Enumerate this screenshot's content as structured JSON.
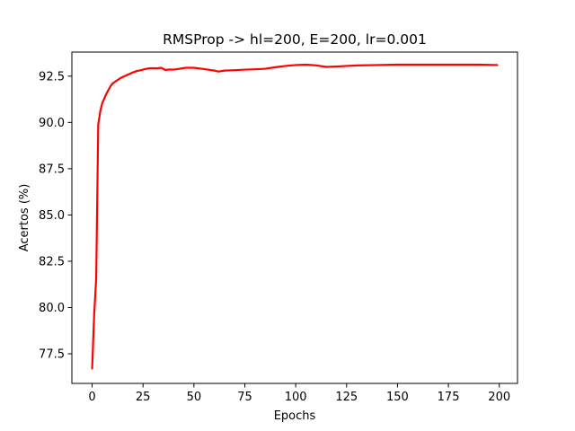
{
  "chart_data": {
    "type": "line",
    "title": "RMSProp -> hl=200, E=200, lr=0.001",
    "xlabel": "Epochs",
    "ylabel": "Acertos (%)",
    "xlim": [
      -9.95,
      208.95
    ],
    "ylim": [
      75.9,
      93.8
    ],
    "xticks": [
      0,
      25,
      50,
      75,
      100,
      125,
      150,
      175,
      200
    ],
    "yticks": [
      77.5,
      80.0,
      82.5,
      85.0,
      87.5,
      90.0,
      92.5
    ],
    "xtick_labels": [
      "0",
      "25",
      "50",
      "75",
      "100",
      "125",
      "150",
      "175",
      "200"
    ],
    "ytick_labels": [
      "77.5",
      "80.0",
      "82.5",
      "85.0",
      "87.5",
      "90.0",
      "92.5"
    ],
    "grid": false,
    "legend": "none",
    "series": [
      {
        "color": "#ff0000",
        "x": [
          0,
          1,
          2,
          3,
          4,
          5,
          6,
          7,
          8,
          9,
          10,
          12,
          14,
          16,
          18,
          20,
          22,
          24,
          26,
          28,
          30,
          32,
          34,
          36,
          38,
          40,
          42,
          44,
          46,
          48,
          50,
          55,
          60,
          62,
          65,
          70,
          75,
          80,
          85,
          90,
          95,
          100,
          105,
          110,
          115,
          120,
          125,
          130,
          140,
          150,
          160,
          170,
          180,
          190,
          199
        ],
        "values": [
          76.7,
          79.6,
          81.6,
          89.9,
          90.6,
          91.05,
          91.3,
          91.55,
          91.75,
          91.95,
          92.1,
          92.25,
          92.4,
          92.5,
          92.6,
          92.7,
          92.78,
          92.82,
          92.88,
          92.92,
          92.93,
          92.92,
          92.95,
          92.83,
          92.86,
          92.85,
          92.88,
          92.92,
          92.95,
          92.95,
          92.95,
          92.88,
          92.8,
          92.75,
          92.8,
          92.82,
          92.85,
          92.87,
          92.9,
          92.98,
          93.05,
          93.1,
          93.12,
          93.08,
          93.0,
          93.02,
          93.05,
          93.08,
          93.1,
          93.12,
          93.12,
          93.12,
          93.12,
          93.12,
          93.1
        ]
      }
    ]
  }
}
